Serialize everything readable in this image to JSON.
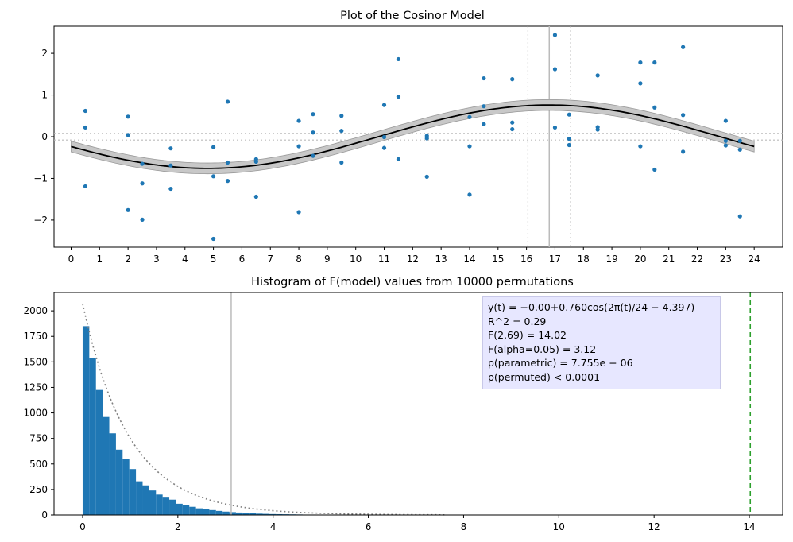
{
  "colors": {
    "points": "#1f77b4",
    "bars": "#1f77b4",
    "curve": "#000000",
    "band": "#c8c8c8",
    "ref_lines": "#bbbbbb",
    "observed_f": "#2ca02c",
    "f_density": "#808080",
    "stats_box": "#e6e6ff"
  },
  "chart_data": [
    {
      "type": "scatter",
      "title": "Plot of the Cosinor Model",
      "xlim": [
        -0.6,
        25.0
      ],
      "ylim": [
        -2.65,
        2.65
      ],
      "xticks": [
        0,
        1,
        2,
        3,
        4,
        5,
        6,
        7,
        8,
        9,
        10,
        11,
        12,
        13,
        14,
        15,
        16,
        17,
        18,
        19,
        20,
        21,
        22,
        23,
        24
      ],
      "yticks": [
        -2,
        -1,
        0,
        1,
        2
      ],
      "grid": false,
      "points": [
        [
          0.5,
          0.62
        ],
        [
          0.5,
          0.22
        ],
        [
          0.5,
          -1.19
        ],
        [
          2.0,
          0.48
        ],
        [
          2.0,
          0.04
        ],
        [
          2.0,
          -1.76
        ],
        [
          2.5,
          -0.65
        ],
        [
          2.5,
          -1.12
        ],
        [
          2.5,
          -1.99
        ],
        [
          3.5,
          -0.28
        ],
        [
          3.5,
          -0.69
        ],
        [
          3.5,
          -1.25
        ],
        [
          5.0,
          -0.25
        ],
        [
          5.0,
          -0.95
        ],
        [
          5.0,
          -2.45
        ],
        [
          5.5,
          0.84
        ],
        [
          5.5,
          -0.62
        ],
        [
          5.5,
          -1.06
        ],
        [
          6.5,
          -0.54
        ],
        [
          6.5,
          -0.6
        ],
        [
          6.5,
          -1.44
        ],
        [
          8.0,
          0.38
        ],
        [
          8.0,
          -0.23
        ],
        [
          8.0,
          -1.81
        ],
        [
          8.5,
          0.54
        ],
        [
          8.5,
          0.1
        ],
        [
          8.5,
          -0.46
        ],
        [
          9.5,
          0.5
        ],
        [
          9.5,
          0.14
        ],
        [
          9.5,
          -0.62
        ],
        [
          11.0,
          0.76
        ],
        [
          11.0,
          -0.01
        ],
        [
          11.0,
          -0.27
        ],
        [
          11.5,
          1.86
        ],
        [
          11.5,
          0.96
        ],
        [
          11.5,
          -0.54
        ],
        [
          12.5,
          0.02
        ],
        [
          12.5,
          -0.04
        ],
        [
          12.5,
          -0.96
        ],
        [
          14.0,
          0.47
        ],
        [
          14.0,
          -0.23
        ],
        [
          14.0,
          -1.39
        ],
        [
          14.5,
          1.4
        ],
        [
          14.5,
          0.73
        ],
        [
          14.5,
          0.3
        ],
        [
          15.5,
          1.38
        ],
        [
          15.5,
          0.34
        ],
        [
          15.5,
          0.18
        ],
        [
          17.0,
          2.44
        ],
        [
          17.0,
          1.62
        ],
        [
          17.0,
          0.22
        ],
        [
          17.5,
          0.53
        ],
        [
          17.5,
          -0.05
        ],
        [
          17.5,
          -0.2
        ],
        [
          18.5,
          1.47
        ],
        [
          18.5,
          0.23
        ],
        [
          18.5,
          0.17
        ],
        [
          20.0,
          1.78
        ],
        [
          20.0,
          1.28
        ],
        [
          20.0,
          -0.23
        ],
        [
          20.5,
          1.78
        ],
        [
          20.5,
          0.7
        ],
        [
          20.5,
          -0.79
        ],
        [
          21.5,
          2.15
        ],
        [
          21.5,
          0.52
        ],
        [
          21.5,
          -0.36
        ],
        [
          23.0,
          0.38
        ],
        [
          23.0,
          -0.1
        ],
        [
          23.0,
          -0.21
        ],
        [
          23.5,
          -0.1
        ],
        [
          23.5,
          -0.31
        ],
        [
          23.5,
          -1.91
        ]
      ],
      "model": {
        "mesor": 0.0,
        "amplitude": 0.76,
        "period": 24,
        "phase_rad": -4.397,
        "band_halfwidth": 0.13,
        "x_range": [
          0,
          24
        ]
      },
      "acrophase_time": 16.8,
      "acrophase_ci": [
        16.05,
        17.55
      ],
      "mesor_ci": [
        -0.08,
        0.08
      ]
    },
    {
      "type": "bar",
      "title": "Histogram of F(model) values from 10000 permutations",
      "xlim": [
        -0.6,
        14.7
      ],
      "ylim": [
        0,
        2180
      ],
      "xticks": [
        0,
        2,
        4,
        6,
        8,
        10,
        12,
        14
      ],
      "yticks": [
        0,
        250,
        500,
        750,
        1000,
        1250,
        1500,
        1750,
        2000
      ],
      "bin_width": 0.14,
      "values": [
        1850,
        1540,
        1225,
        960,
        800,
        640,
        545,
        450,
        330,
        290,
        240,
        200,
        170,
        150,
        110,
        95,
        80,
        65,
        55,
        48,
        40,
        33,
        28,
        24,
        20,
        16,
        13,
        11,
        9,
        8,
        7,
        6,
        5,
        4,
        4,
        3,
        3,
        2,
        2,
        2,
        1,
        1,
        1,
        1,
        1,
        1,
        0,
        0,
        0,
        0
      ],
      "f_density_scale": 2070,
      "f_density_range": [
        0,
        7.6
      ],
      "f_critical": 3.12,
      "f_observed": 14.02
    }
  ],
  "stats": {
    "equation": "y(t) = −0.00+0.760cos(2π(t)/24 − 4.397)",
    "r2": "R^2 = 0.29",
    "f_stat": "F(2,69) = 14.02",
    "f_alpha": "F(alpha=0.05) = 3.12",
    "p_parametric": "p(parametric) = 7.755e − 06",
    "p_permuted": "p(permuted) < 0.0001"
  }
}
